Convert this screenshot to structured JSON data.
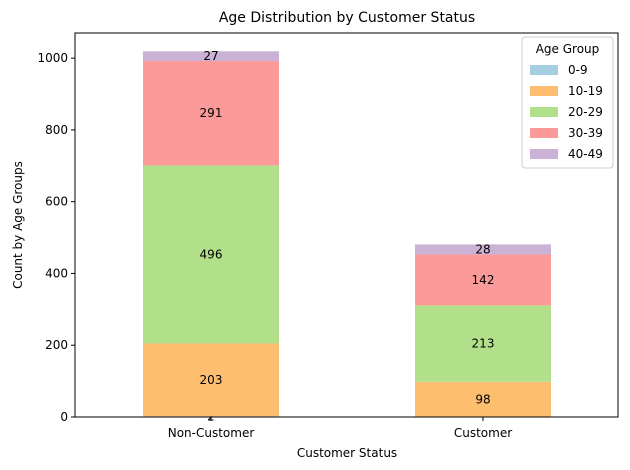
{
  "chart_data": {
    "type": "bar",
    "stacked": true,
    "title": "Age Distribution by Customer Status",
    "xlabel": "Customer Status",
    "ylabel": "Count by Age Groups",
    "categories": [
      "Non-Customer",
      "Customer"
    ],
    "ylim": [
      0,
      1070
    ],
    "yticks": [
      0,
      200,
      400,
      600,
      800,
      1000
    ],
    "grid": false,
    "legend": {
      "title": "Age Group",
      "placement": "top-right"
    },
    "series": [
      {
        "name": "0-9",
        "color": "#a6cee3",
        "values": [
          2,
          0
        ],
        "labels": [
          "2",
          ""
        ]
      },
      {
        "name": "10-19",
        "color": "#fdbf6f",
        "values": [
          203,
          98
        ],
        "labels": [
          "203",
          "98"
        ]
      },
      {
        "name": "20-29",
        "color": "#b2df8a",
        "values": [
          496,
          213
        ],
        "labels": [
          "496",
          "213"
        ]
      },
      {
        "name": "30-39",
        "color": "#fb9a99",
        "values": [
          291,
          142
        ],
        "labels": [
          "291",
          "142"
        ]
      },
      {
        "name": "40-49",
        "color": "#cab2d6",
        "values": [
          27,
          28
        ],
        "labels": [
          "27",
          "28"
        ]
      }
    ]
  }
}
